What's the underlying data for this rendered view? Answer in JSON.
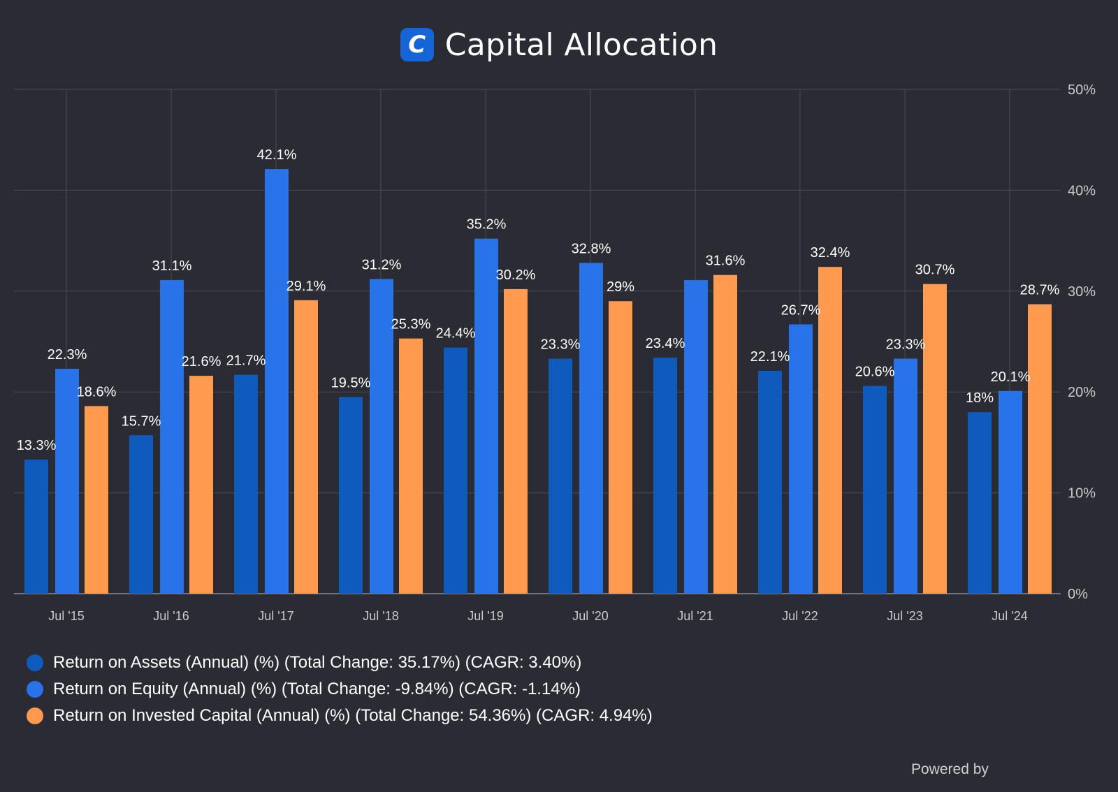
{
  "header": {
    "logo_letter": "C",
    "title": "Capital Allocation"
  },
  "chart_data": {
    "type": "bar",
    "title": "Capital Allocation",
    "categories": [
      "Jul '15",
      "Jul '16",
      "Jul '17",
      "Jul '18",
      "Jul '19",
      "Jul '20",
      "Jul '21",
      "Jul '22",
      "Jul '23",
      "Jul '24"
    ],
    "y_ticks": [
      "0%",
      "10%",
      "20%",
      "30%",
      "40%",
      "50%"
    ],
    "ylim": [
      0,
      50
    ],
    "y_axis_position": "right",
    "grid": true,
    "series": [
      {
        "name": "Return on Assets (Annual) (%) (Total Change: 35.17%) (CAGR: 3.40%)",
        "color": "#0f5bbd",
        "values": [
          13.3,
          15.7,
          21.7,
          19.5,
          24.4,
          23.3,
          23.4,
          22.1,
          20.6,
          18
        ],
        "labels": [
          "13.3%",
          "15.7%",
          "21.7%",
          "19.5%",
          "24.4%",
          "23.3%",
          "23.4%",
          "22.1%",
          "20.6%",
          "18%"
        ]
      },
      {
        "name": "Return on Equity (Annual) (%) (Total Change: -9.84%) (CAGR: -1.14%)",
        "color": "#2872ea",
        "values": [
          22.3,
          31.1,
          42.1,
          31.2,
          35.2,
          32.8,
          31.1,
          26.7,
          23.3,
          20.1
        ],
        "labels": [
          "22.3%",
          "31.1%",
          "42.1%",
          "31.2%",
          "35.2%",
          "32.8%",
          "",
          "26.7%",
          "23.3%",
          "20.1%"
        ]
      },
      {
        "name": "Return on Invested Capital (Annual) (%) (Total Change: 54.36%) (CAGR: 4.94%)",
        "color": "#ff9a4e",
        "values": [
          18.6,
          21.6,
          29.1,
          25.3,
          30.2,
          29,
          31.6,
          32.4,
          30.7,
          28.7
        ],
        "labels": [
          "18.6%",
          "21.6%",
          "29.1%",
          "25.3%",
          "30.2%",
          "29%",
          "31.6%",
          "32.4%",
          "30.7%",
          "28.7%"
        ]
      }
    ],
    "legend_position": "bottom-left"
  },
  "footer": {
    "powered_by": "Powered by"
  }
}
